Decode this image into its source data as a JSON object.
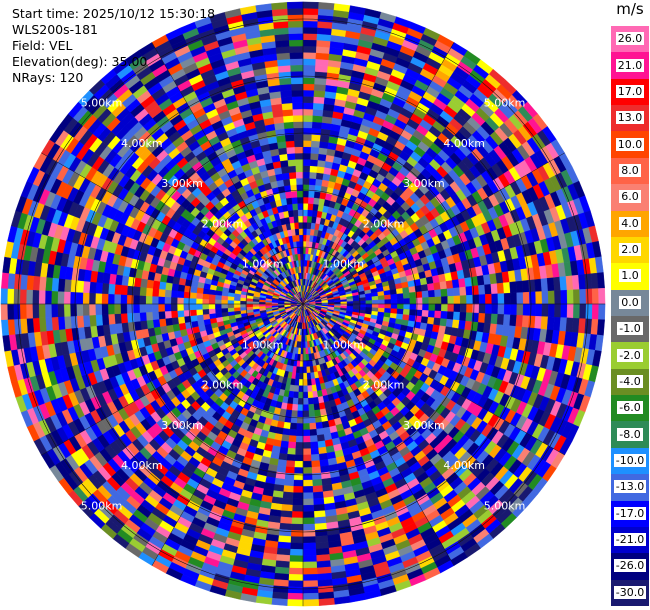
{
  "info": {
    "start_time": "Start time: 2025/10/12 15:30:18",
    "instrument": "WLS200s-181",
    "field": "Field: VEL",
    "elevation": "Elevation(deg): 35.00",
    "nrays": "NRays: 120"
  },
  "colorbar": {
    "unit": "m/s",
    "ticks": [
      "26.0",
      "21.0",
      "17.0",
      "13.0",
      "10.0",
      "8.0",
      "6.0",
      "4.0",
      "2.0",
      "1.0",
      "0.0",
      "-1.0",
      "-2.0",
      "-4.0",
      "-6.0",
      "-8.0",
      "-10.0",
      "-13.0",
      "-17.0",
      "-21.0",
      "-26.0",
      "-30.0"
    ],
    "colors": [
      "#ff69b4",
      "#ff1493",
      "#ff0000",
      "#ee2c2c",
      "#ff4500",
      "#ff6347",
      "#fa8072",
      "#ffa500",
      "#ffd700",
      "#ffff00",
      "#778899",
      "#696969",
      "#9acd32",
      "#6b8e23",
      "#228b22",
      "#2e8b57",
      "#1e90ff",
      "#4169e1",
      "#0000ff",
      "#0000cd",
      "#000080",
      "#191970"
    ]
  },
  "chart_data": {
    "type": "heatmap",
    "projection": "polar-ppi",
    "field": "VEL",
    "units": "m/s",
    "nrays": 120,
    "range_rings_km": [
      1,
      2,
      3,
      4,
      5
    ],
    "range_ring_labels": [
      "1.00km",
      "2.00km",
      "3.00km",
      "4.00km",
      "5.00km"
    ],
    "max_range_km": 5.3,
    "color_scale": {
      "bounds": [
        -30,
        -26,
        -21,
        -17,
        -13,
        -10,
        -8,
        -6,
        -4,
        -2,
        -1,
        0,
        1,
        2,
        4,
        6,
        8,
        10,
        13,
        17,
        21,
        26,
        30
      ]
    },
    "pattern": "noise-dominated velocity field spanning the full scale; dense multicolor speckle in every ray and range gate",
    "grid": true
  }
}
